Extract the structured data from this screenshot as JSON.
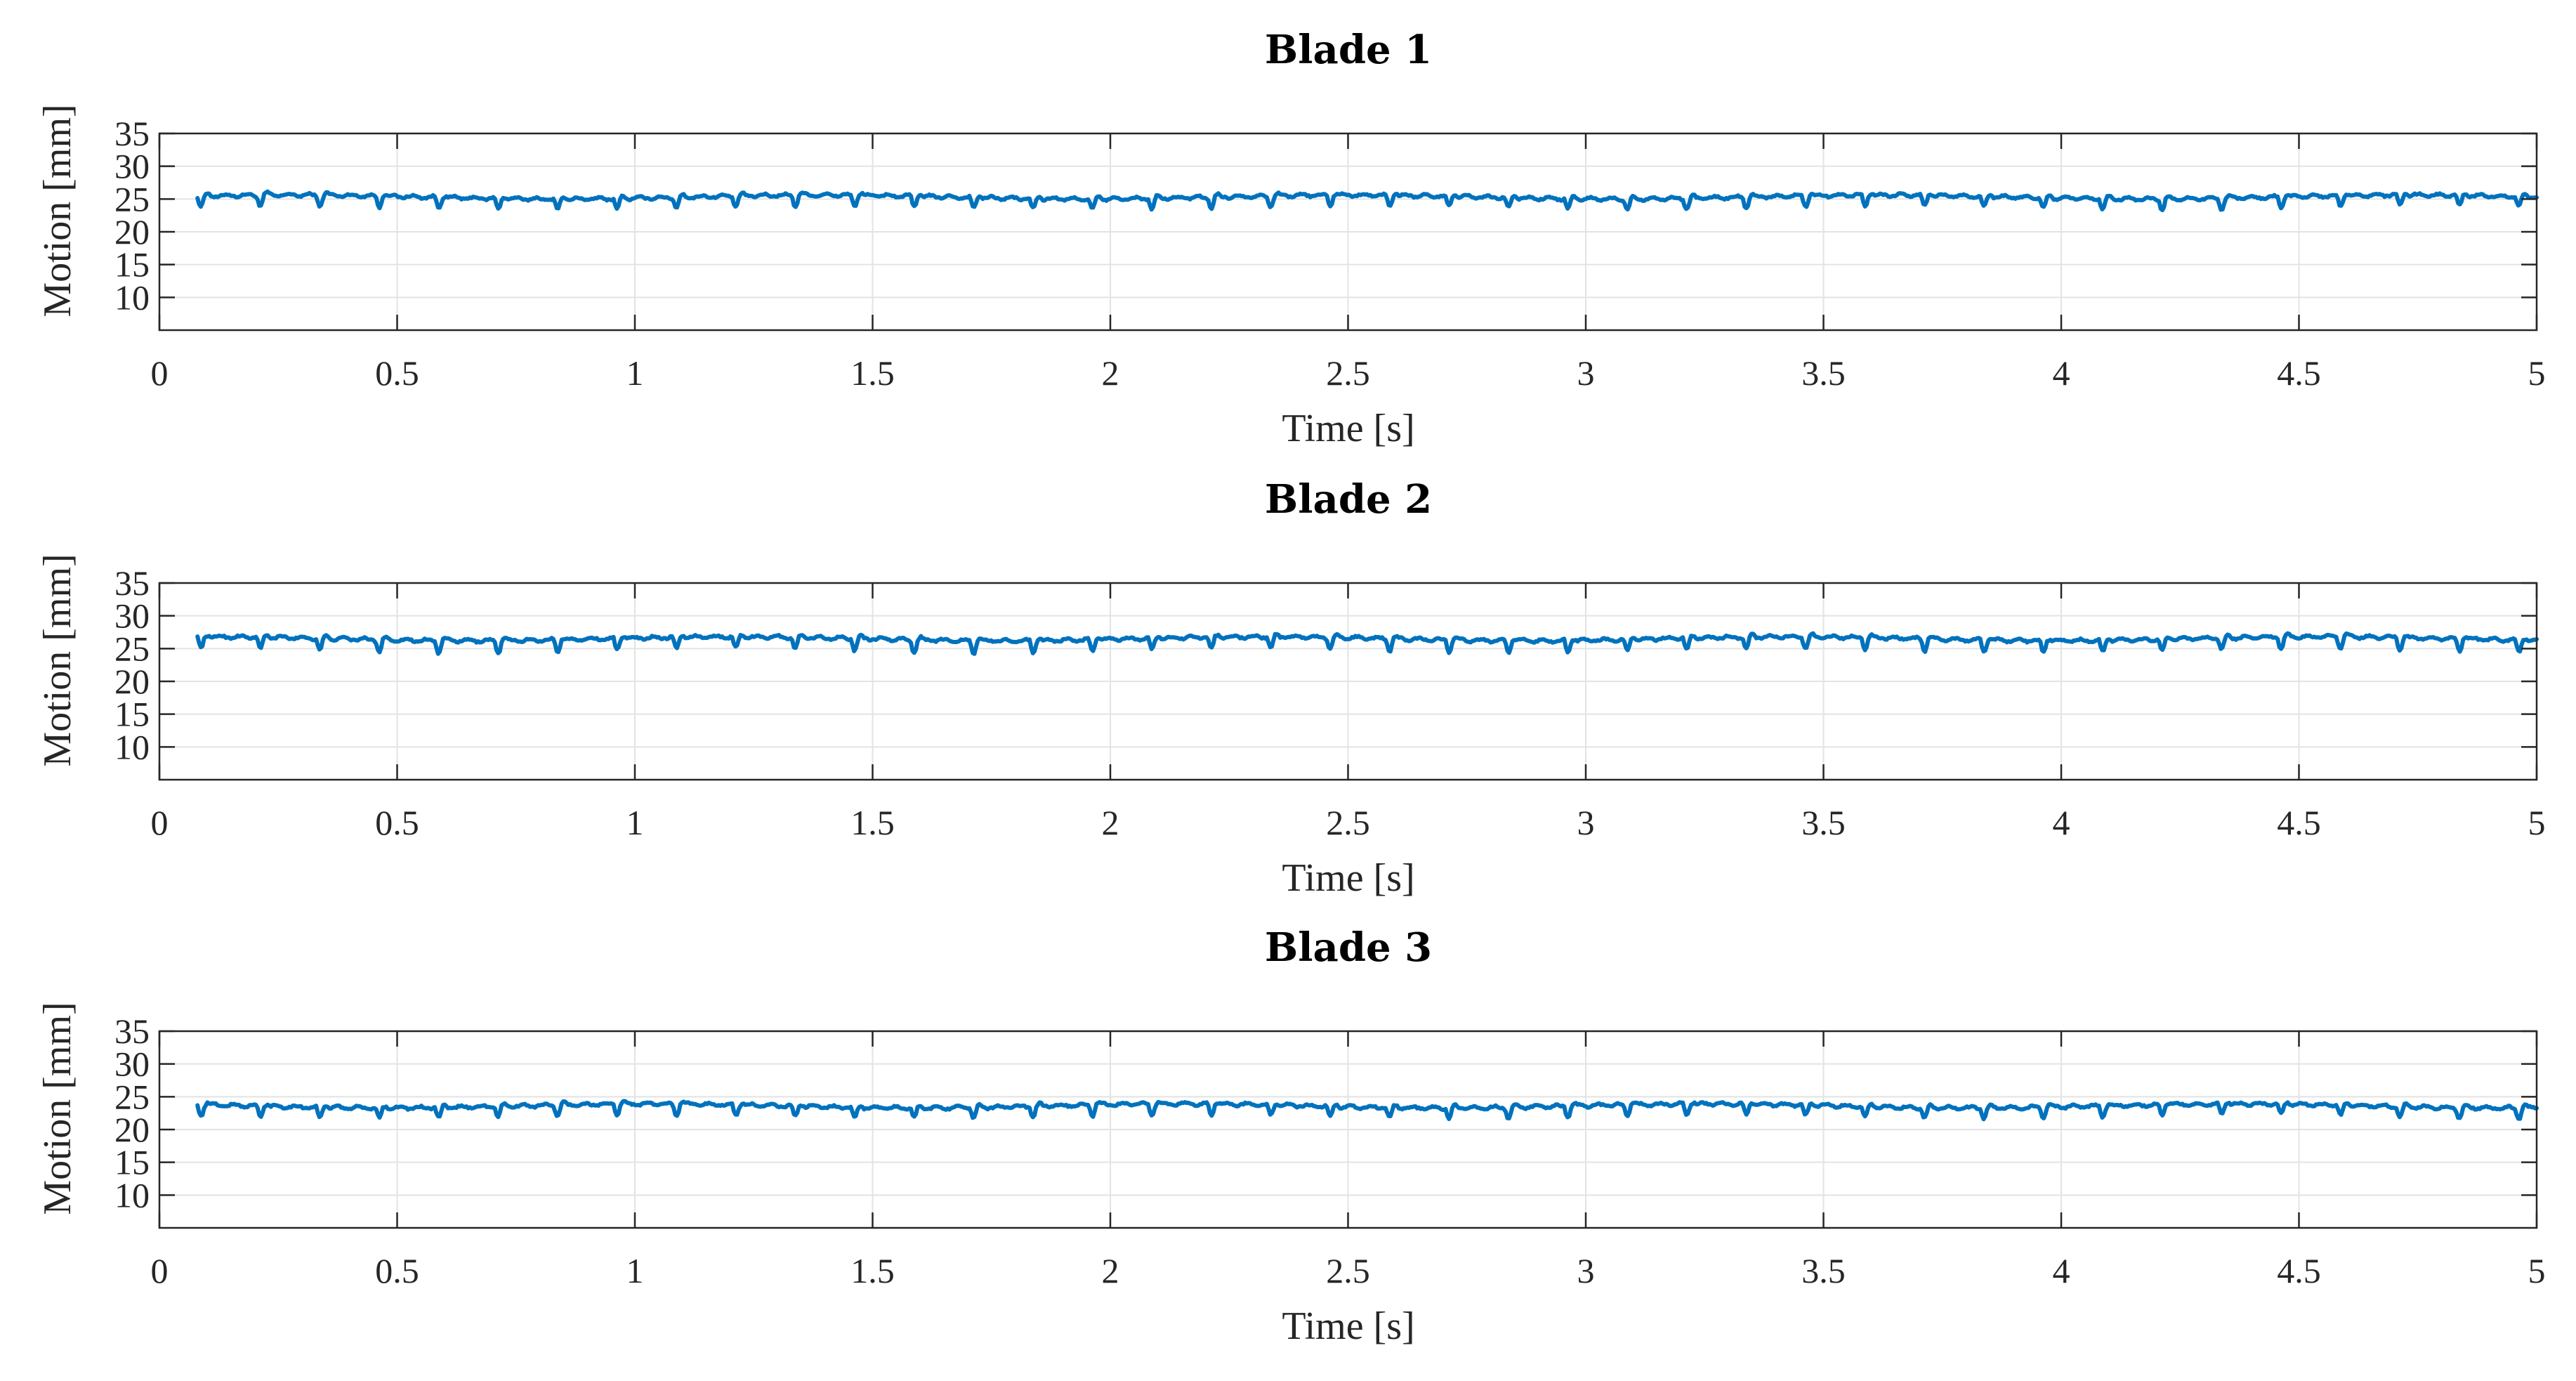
{
  "figure": {
    "background": "#ffffff",
    "series_color": "#0072bd",
    "grid_color": "#e3e3e3",
    "axis_color": "#262626"
  },
  "chart_data": [
    {
      "type": "line",
      "title": "Blade 1",
      "xlabel": "Time [s]",
      "ylabel": "Motion [mm]",
      "xlim": [
        0,
        5
      ],
      "ylim": [
        5,
        35
      ],
      "xticks": [
        0,
        0.5,
        1,
        1.5,
        2,
        2.5,
        3,
        3.5,
        4,
        4.5,
        5
      ],
      "xtick_labels": [
        "0",
        "0.5",
        "1",
        "1.5",
        "2",
        "2.5",
        "3",
        "3.5",
        "4",
        "4.5",
        "5"
      ],
      "yticks": [
        10,
        15,
        20,
        25,
        30,
        35
      ],
      "ytick_labels": [
        "10",
        "15",
        "20",
        "25",
        "30",
        "35"
      ],
      "grid": true,
      "series": [
        {
          "name": "Blade 1",
          "x_start": 0.08,
          "x_end": 5.0,
          "baseline_mm": 25.3,
          "amplitude_mm": 0.5,
          "dip_depth_mm": 1.6,
          "dip_period_s": 0.125
        }
      ]
    },
    {
      "type": "line",
      "title": "Blade 2",
      "xlabel": "Time [s]",
      "ylabel": "Motion [mm]",
      "xlim": [
        0,
        5
      ],
      "ylim": [
        5,
        35
      ],
      "xticks": [
        0,
        0.5,
        1,
        1.5,
        2,
        2.5,
        3,
        3.5,
        4,
        4.5,
        5
      ],
      "xtick_labels": [
        "0",
        "0.5",
        "1",
        "1.5",
        "2",
        "2.5",
        "3",
        "3.5",
        "4",
        "4.5",
        "5"
      ],
      "yticks": [
        10,
        15,
        20,
        25,
        30,
        35
      ],
      "ytick_labels": [
        "10",
        "15",
        "20",
        "25",
        "30",
        "35"
      ],
      "grid": true,
      "series": [
        {
          "name": "Blade 2",
          "x_start": 0.08,
          "x_end": 5.0,
          "baseline_mm": 26.5,
          "amplitude_mm": 0.5,
          "dip_depth_mm": 1.8,
          "dip_period_s": 0.125
        }
      ]
    },
    {
      "type": "line",
      "title": "Blade 3",
      "xlabel": "Time [s]",
      "ylabel": "Motion [mm]",
      "xlim": [
        0,
        5
      ],
      "ylim": [
        5,
        35
      ],
      "xticks": [
        0,
        0.5,
        1,
        1.5,
        2,
        2.5,
        3,
        3.5,
        4,
        4.5,
        5
      ],
      "xtick_labels": [
        "0",
        "0.5",
        "1",
        "1.5",
        "2",
        "2.5",
        "3",
        "3.5",
        "4",
        "4.5",
        "5"
      ],
      "yticks": [
        10,
        15,
        20,
        25,
        30,
        35
      ],
      "ytick_labels": [
        "10",
        "15",
        "20",
        "25",
        "30",
        "35"
      ],
      "grid": true,
      "series": [
        {
          "name": "Blade 3",
          "x_start": 0.08,
          "x_end": 5.0,
          "baseline_mm": 23.6,
          "amplitude_mm": 0.5,
          "dip_depth_mm": 1.6,
          "dip_period_s": 0.125
        }
      ]
    }
  ]
}
